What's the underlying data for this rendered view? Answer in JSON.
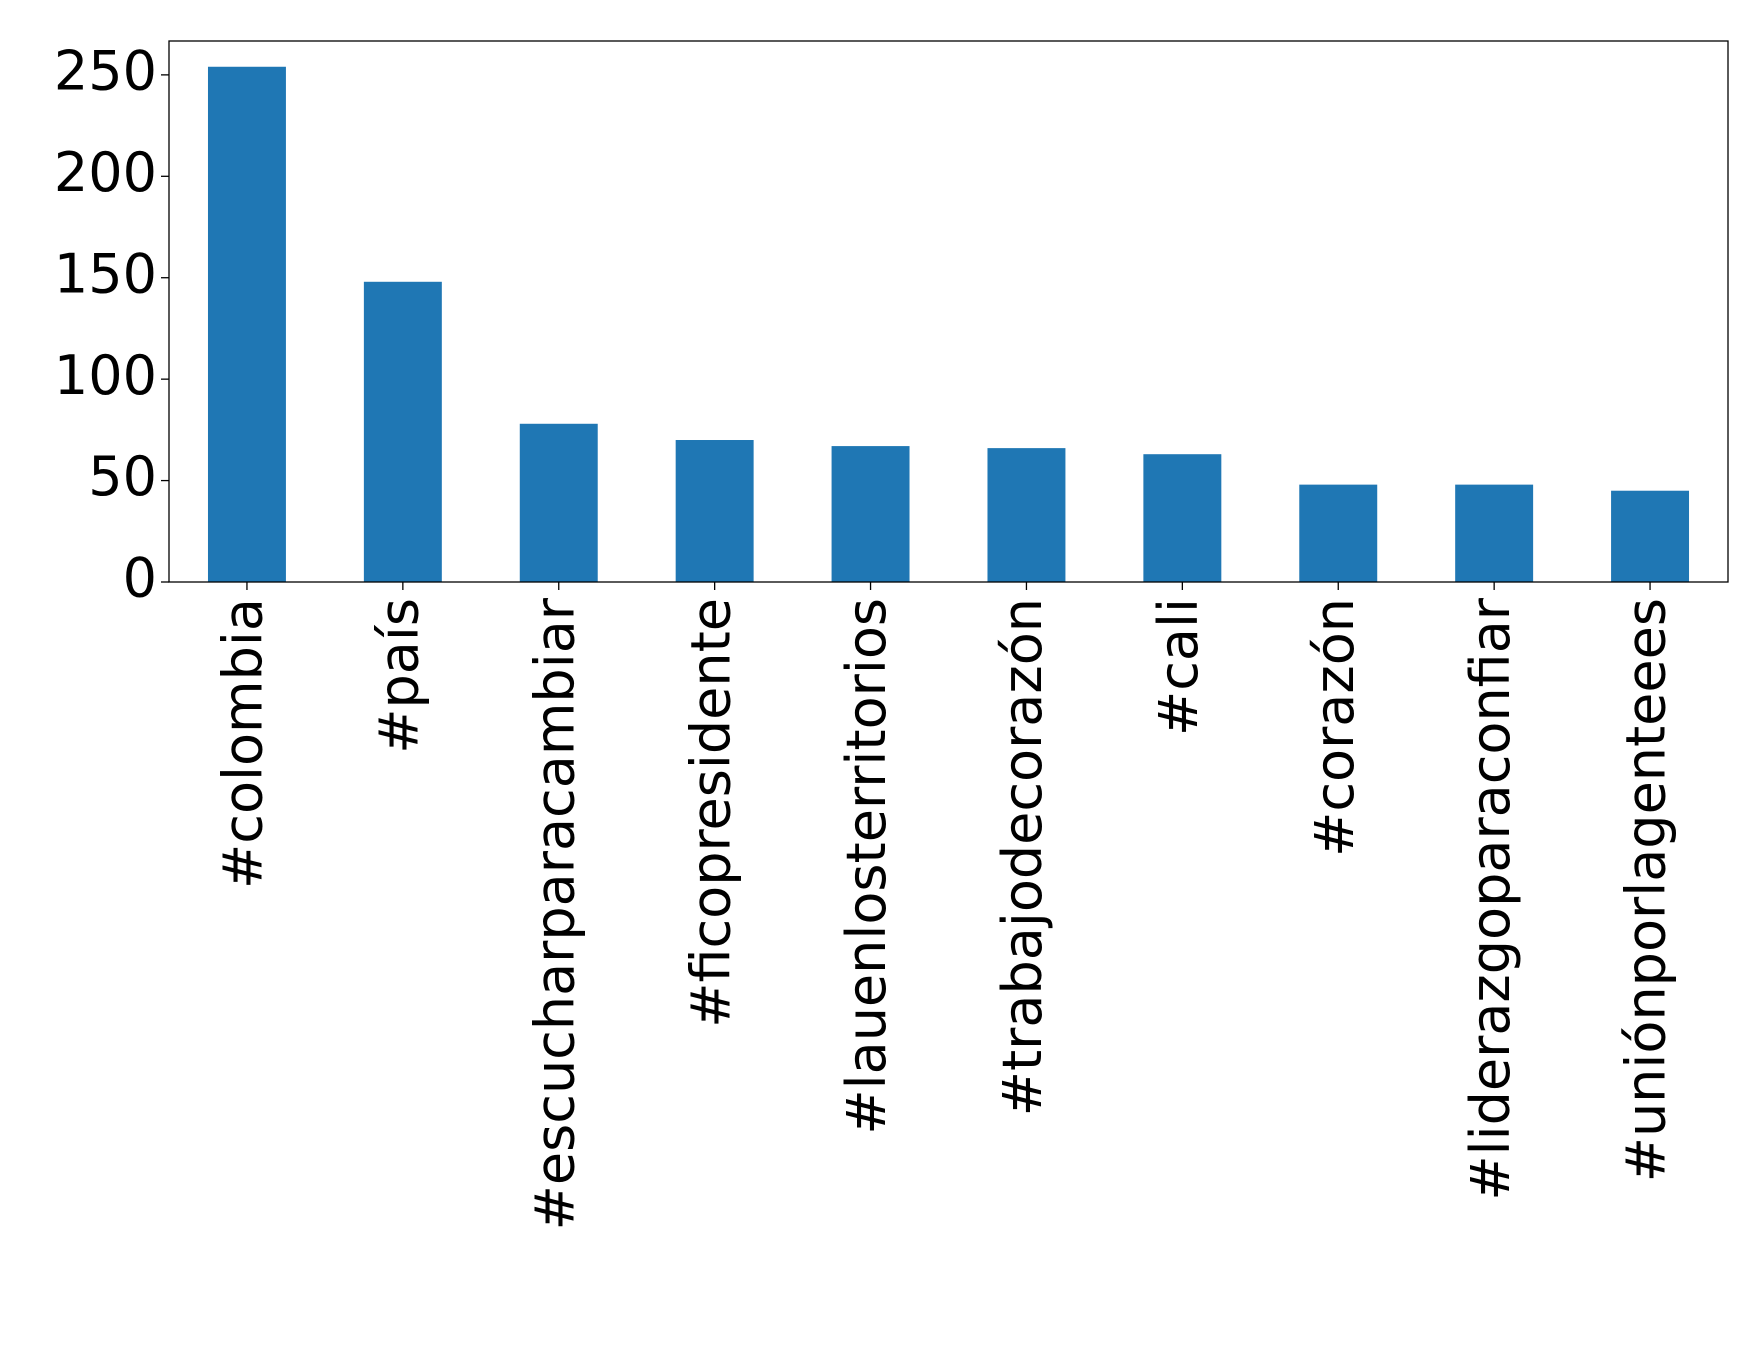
{
  "chart_data": {
    "type": "bar",
    "categories": [
      "#colombia",
      "#país",
      "#escucharparacambiar",
      "#ficopresidente",
      "#lauenlosterritorios",
      "#trabajodecorazón",
      "#cali",
      "#corazón",
      "#liderazgoparaconfiar",
      "#uniónporlagenteees"
    ],
    "values": [
      254,
      148,
      78,
      70,
      67,
      66,
      63,
      48,
      48,
      45
    ],
    "color": "#1f77b4",
    "ylim": [
      0,
      266.7
    ],
    "yticks": [
      0,
      50,
      100,
      150,
      200,
      250
    ],
    "grid": false
  }
}
